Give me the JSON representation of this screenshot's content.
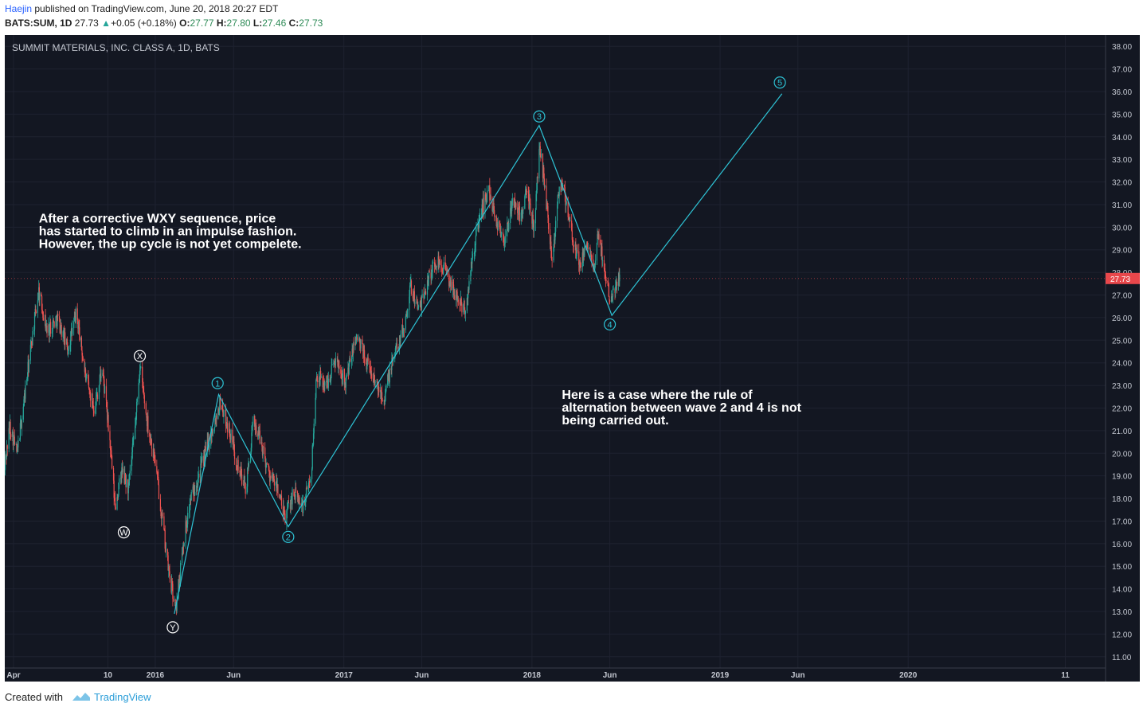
{
  "header": {
    "author": "Haejin",
    "published_text": " published on TradingView.com, June 20, 2018 20:27 EDT",
    "symbol": "BATS:SUM, 1D",
    "last": "27.73",
    "change_arrow": "▲",
    "change": "+0.05 (+0.18%)",
    "o_label": "O:",
    "o_value": "27.77",
    "h_label": "H:",
    "h_value": "27.80",
    "l_label": "L:",
    "l_value": "27.46",
    "c_label": "C:",
    "c_value": "27.73"
  },
  "footer": {
    "created_with": "Created with",
    "brand": "TradingView"
  },
  "colors": {
    "background": "#131722",
    "up": "#26a69a",
    "down": "#ef5350",
    "wave_line": "#2ec4d6",
    "price_tag": "#e8474b",
    "grid": "#1e2230"
  },
  "chart_data": {
    "type": "candlestick",
    "title": "SUMMIT MATERIALS, INC. CLASS A, 1D, BATS",
    "ylim": [
      10.5,
      38.5
    ],
    "y_ticks": [
      11,
      12,
      13,
      14,
      15,
      16,
      17,
      18,
      19,
      20,
      21,
      22,
      23,
      24,
      25,
      26,
      27,
      28,
      29,
      30,
      31,
      32,
      33,
      34,
      35,
      36,
      37,
      38
    ],
    "y_tick_labels": [
      "11.00",
      "12.00",
      "13.00",
      "14.00",
      "15.00",
      "16.00",
      "17.00",
      "18.00",
      "19.00",
      "20.00",
      "21.00",
      "22.00",
      "23.00",
      "24.00",
      "25.00",
      "26.00",
      "27.00",
      "28.00",
      "29.00",
      "30.00",
      "31.00",
      "32.00",
      "33.00",
      "34.00",
      "35.00",
      "36.00",
      "37.00",
      "38.00"
    ],
    "x_start": "2015-03-15",
    "x_end": "2021-01-18",
    "x_ticks": [
      {
        "date": "2015-04-01",
        "label": "Apr"
      },
      {
        "date": "2015-10-01",
        "label": "10"
      },
      {
        "date": "2016-01-01",
        "label": "2016"
      },
      {
        "date": "2016-06-01",
        "label": "Jun"
      },
      {
        "date": "2017-01-01",
        "label": "2017"
      },
      {
        "date": "2017-06-01",
        "label": "Jun"
      },
      {
        "date": "2018-01-01",
        "label": "2018"
      },
      {
        "date": "2018-06-01",
        "label": "Jun"
      },
      {
        "date": "2019-01-01",
        "label": "2019"
      },
      {
        "date": "2019-06-01",
        "label": "Jun"
      },
      {
        "date": "2020-01-01",
        "label": "2020"
      },
      {
        "date": "2020-11-01",
        "label": "11"
      }
    ],
    "last_price": 27.73,
    "last_price_label": "27.73",
    "price_path": [
      {
        "date": "2015-03-13",
        "price": 19.2
      },
      {
        "date": "2015-03-25",
        "price": 21.2
      },
      {
        "date": "2015-04-08",
        "price": 20.0
      },
      {
        "date": "2015-04-25",
        "price": 23.0
      },
      {
        "date": "2015-05-10",
        "price": 25.6
      },
      {
        "date": "2015-05-20",
        "price": 27.2
      },
      {
        "date": "2015-06-05",
        "price": 25.4
      },
      {
        "date": "2015-06-25",
        "price": 26.0
      },
      {
        "date": "2015-07-15",
        "price": 24.6
      },
      {
        "date": "2015-08-01",
        "price": 26.2
      },
      {
        "date": "2015-08-20",
        "price": 23.2
      },
      {
        "date": "2015-09-05",
        "price": 22.0
      },
      {
        "date": "2015-09-20",
        "price": 23.8
      },
      {
        "date": "2015-10-05",
        "price": 20.5
      },
      {
        "date": "2015-10-15",
        "price": 17.6
      },
      {
        "date": "2015-10-28",
        "price": 19.2
      },
      {
        "date": "2015-11-10",
        "price": 18.4
      },
      {
        "date": "2015-11-24",
        "price": 21.4
      },
      {
        "date": "2015-12-02",
        "price": 23.9
      },
      {
        "date": "2015-12-15",
        "price": 21.6
      },
      {
        "date": "2016-01-01",
        "price": 19.6
      },
      {
        "date": "2016-01-15",
        "price": 17.0
      },
      {
        "date": "2016-01-28",
        "price": 14.6
      },
      {
        "date": "2016-02-10",
        "price": 13.1
      },
      {
        "date": "2016-02-25",
        "price": 16.2
      },
      {
        "date": "2016-03-10",
        "price": 18.0
      },
      {
        "date": "2016-03-30",
        "price": 19.4
      },
      {
        "date": "2016-04-20",
        "price": 21.0
      },
      {
        "date": "2016-05-06",
        "price": 22.3
      },
      {
        "date": "2016-05-25",
        "price": 20.9
      },
      {
        "date": "2016-06-10",
        "price": 19.4
      },
      {
        "date": "2016-06-25",
        "price": 18.4
      },
      {
        "date": "2016-07-10",
        "price": 21.5
      },
      {
        "date": "2016-07-25",
        "price": 20.4
      },
      {
        "date": "2016-08-10",
        "price": 19.0
      },
      {
        "date": "2016-08-25",
        "price": 18.5
      },
      {
        "date": "2016-09-08",
        "price": 17.1
      },
      {
        "date": "2016-09-25",
        "price": 18.3
      },
      {
        "date": "2016-10-15",
        "price": 17.6
      },
      {
        "date": "2016-10-30",
        "price": 19.2
      },
      {
        "date": "2016-11-09",
        "price": 23.5
      },
      {
        "date": "2016-11-28",
        "price": 23.0
      },
      {
        "date": "2016-12-15",
        "price": 24.2
      },
      {
        "date": "2017-01-05",
        "price": 23.2
      },
      {
        "date": "2017-01-25",
        "price": 25.2
      },
      {
        "date": "2017-02-15",
        "price": 24.0
      },
      {
        "date": "2017-03-05",
        "price": 23.0
      },
      {
        "date": "2017-03-20",
        "price": 22.5
      },
      {
        "date": "2017-04-10",
        "price": 24.5
      },
      {
        "date": "2017-04-28",
        "price": 25.6
      },
      {
        "date": "2017-05-10",
        "price": 27.4
      },
      {
        "date": "2017-05-28",
        "price": 26.3
      },
      {
        "date": "2017-06-15",
        "price": 27.9
      },
      {
        "date": "2017-07-05",
        "price": 28.6
      },
      {
        "date": "2017-07-25",
        "price": 27.6
      },
      {
        "date": "2017-08-10",
        "price": 26.8
      },
      {
        "date": "2017-08-25",
        "price": 26.3
      },
      {
        "date": "2017-09-10",
        "price": 29.0
      },
      {
        "date": "2017-09-25",
        "price": 30.8
      },
      {
        "date": "2017-10-10",
        "price": 31.6
      },
      {
        "date": "2017-10-25",
        "price": 30.2
      },
      {
        "date": "2017-11-10",
        "price": 29.4
      },
      {
        "date": "2017-11-25",
        "price": 31.2
      },
      {
        "date": "2017-12-10",
        "price": 30.5
      },
      {
        "date": "2017-12-22",
        "price": 31.5
      },
      {
        "date": "2018-01-05",
        "price": 30.0
      },
      {
        "date": "2018-01-16",
        "price": 33.6
      },
      {
        "date": "2018-01-25",
        "price": 32.0
      },
      {
        "date": "2018-02-05",
        "price": 29.6
      },
      {
        "date": "2018-02-10",
        "price": 28.4
      },
      {
        "date": "2018-02-20",
        "price": 31.5
      },
      {
        "date": "2018-03-01",
        "price": 32.0
      },
      {
        "date": "2018-03-12",
        "price": 30.5
      },
      {
        "date": "2018-03-25",
        "price": 29.0
      },
      {
        "date": "2018-04-06",
        "price": 28.3
      },
      {
        "date": "2018-04-20",
        "price": 29.4
      },
      {
        "date": "2018-05-01",
        "price": 27.8
      },
      {
        "date": "2018-05-10",
        "price": 29.8
      },
      {
        "date": "2018-05-22",
        "price": 28.0
      },
      {
        "date": "2018-06-01",
        "price": 27.0
      },
      {
        "date": "2018-06-12",
        "price": 27.4
      },
      {
        "date": "2018-06-20",
        "price": 27.73
      }
    ],
    "wave_labels": [
      {
        "label": "W",
        "date": "2015-11-01",
        "price": 16.5
      },
      {
        "label": "X",
        "date": "2015-12-02",
        "price": 24.3
      },
      {
        "label": "Y",
        "date": "2016-02-04",
        "price": 12.3
      },
      {
        "label": "1",
        "date": "2016-05-01",
        "price": 23.1
      },
      {
        "label": "2",
        "date": "2016-09-15",
        "price": 16.3
      },
      {
        "label": "3",
        "date": "2018-01-15",
        "price": 34.9
      },
      {
        "label": "4",
        "date": "2018-06-01",
        "price": 25.7
      },
      {
        "label": "5",
        "date": "2019-04-27",
        "price": 36.4
      }
    ],
    "wave_path": [
      {
        "date": "2016-02-07",
        "price": 12.9
      },
      {
        "date": "2016-05-03",
        "price": 22.6
      },
      {
        "date": "2016-09-15",
        "price": 16.75
      },
      {
        "date": "2018-01-15",
        "price": 34.5
      },
      {
        "date": "2018-06-05",
        "price": 26.1
      },
      {
        "date": "2019-05-01",
        "price": 35.9
      }
    ],
    "annotations": [
      {
        "lines": [
          "After a corrective WXY sequence, price",
          "has started to climb in an impulse fashion.",
          "However, the up cycle is not yet compelete."
        ],
        "date": "2015-05-20",
        "price": 30.2
      },
      {
        "lines": [
          "Here is a case where the rule of",
          "alternation between wave 2 and 4 is not",
          "being carried out."
        ],
        "date": "2018-02-28",
        "price": 22.4
      }
    ]
  }
}
